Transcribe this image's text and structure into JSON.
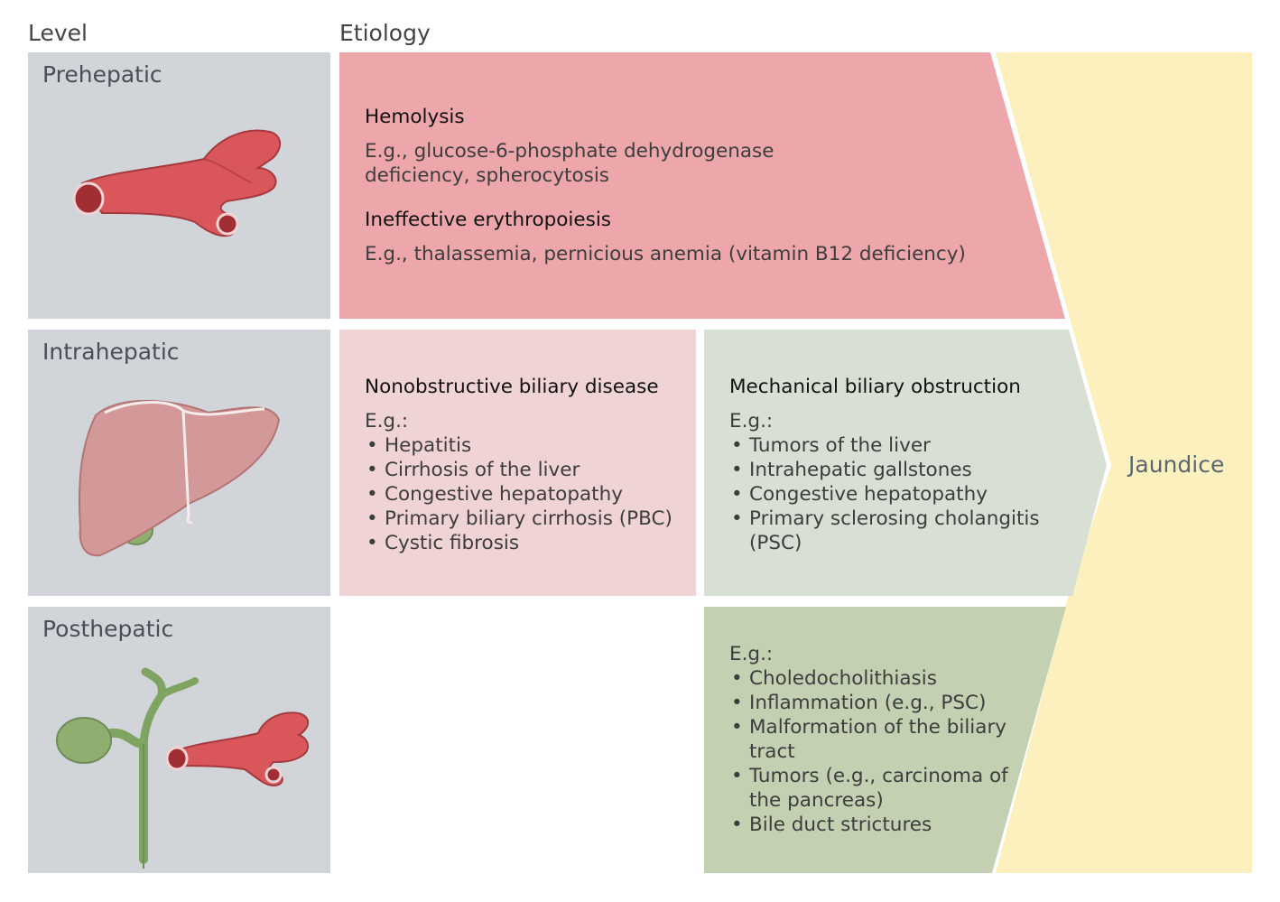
{
  "headers": {
    "level": "Level",
    "etiology": "Etiology"
  },
  "levels": {
    "prehepatic": "Prehepatic",
    "intrahepatic": "Intrahepatic",
    "posthepatic": "Posthepatic"
  },
  "prehepatic": {
    "hemolysis_title": "Hemolysis",
    "hemolysis_line1": "E.g., glucose-6-phosphate dehydrogenase",
    "hemolysis_line2": "deficiency, spherocytosis",
    "ineffective_title": "Ineffective erythropoiesis",
    "ineffective_text": "E.g., thalassemia, pernicious anemia (vitamin B12 deficiency)"
  },
  "nonobstructive": {
    "title": "Nonobstructive biliary disease",
    "eg": "E.g.:",
    "items": [
      "Hepatitis",
      "Cirrhosis of the liver",
      "Congestive hepatopathy",
      "Primary biliary cirrhosis (PBC)",
      "Cystic fibrosis"
    ]
  },
  "mechanical": {
    "title": "Mechanical biliary obstruction",
    "eg": "E.g.:",
    "items": [
      "Tumors of the liver",
      "Intrahepatic gallstones",
      "Congestive hepatopathy",
      "Primary sclerosing cholangitis",
      "(PSC)"
    ]
  },
  "posthepatic": {
    "eg": "E.g.:",
    "items": [
      "Choledocholithiasis",
      "Inflammation (e.g., PSC)",
      "Malformation of the biliary",
      "tract",
      "Tumors (e.g., carcinoma of",
      "the pancreas)",
      "Bile duct strictures"
    ]
  },
  "result": "Jaundice",
  "colors": {
    "level_bg": "#d1d5d9",
    "prehepatic_bg": "#eda7aa",
    "nonobstructive_bg": "#f0d3d5",
    "mechanical_bg": "#d8dfd4",
    "posthepatic_bg": "#c3d0b1",
    "jaundice_bg": "#fcf0bf"
  },
  "icons": [
    "blood-vessel-icon",
    "liver-icon",
    "bile-duct-icon"
  ]
}
